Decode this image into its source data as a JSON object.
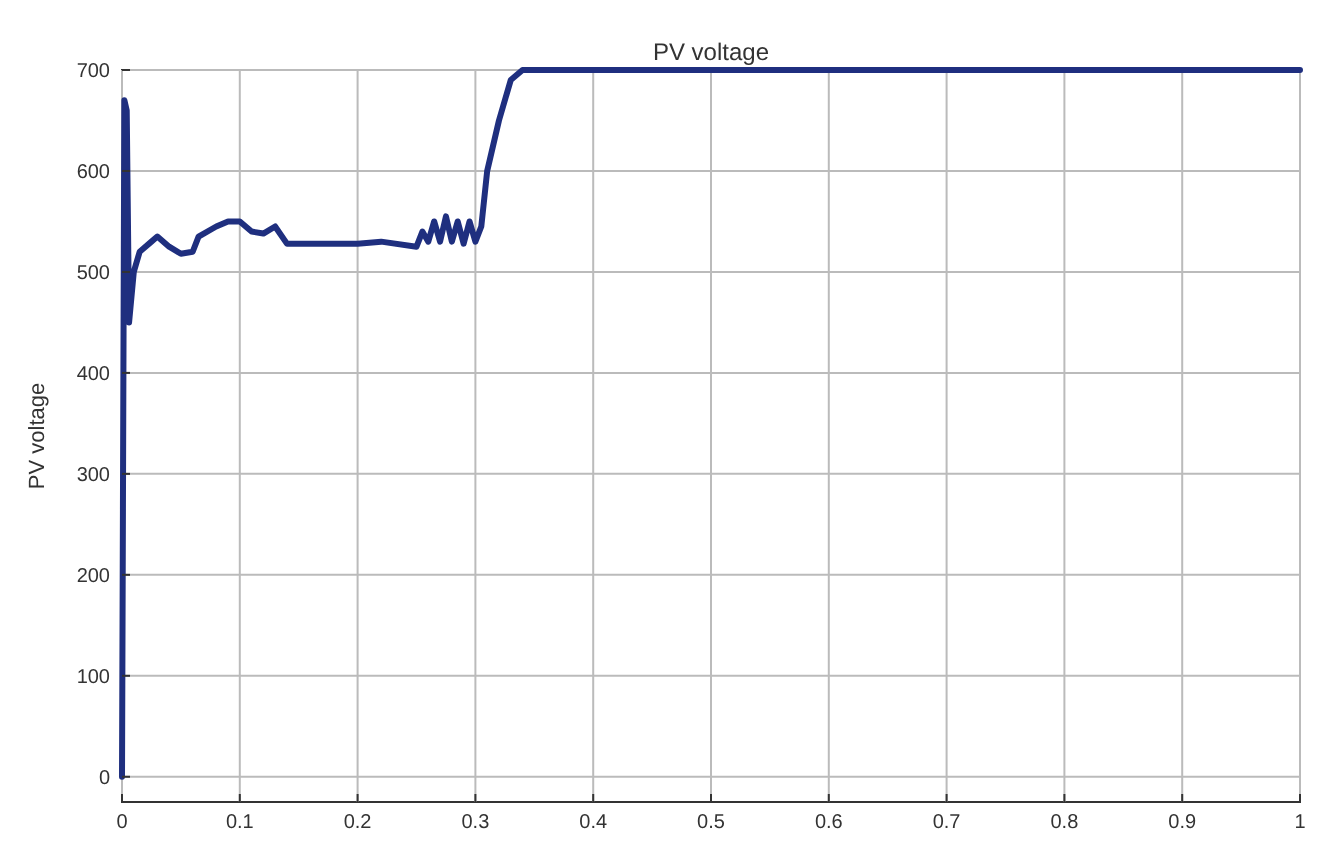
{
  "chart_data": {
    "type": "line",
    "title": "PV voltage",
    "ylabel": "PV voltage",
    "x": [
      0,
      0.002,
      0.004,
      0.006,
      0.01,
      0.015,
      0.025,
      0.03,
      0.04,
      0.05,
      0.06,
      0.065,
      0.08,
      0.09,
      0.1,
      0.11,
      0.12,
      0.13,
      0.14,
      0.2,
      0.22,
      0.25,
      0.255,
      0.26,
      0.265,
      0.27,
      0.275,
      0.28,
      0.285,
      0.29,
      0.295,
      0.3,
      0.305,
      0.31,
      0.32,
      0.33,
      0.34,
      1
    ],
    "series": [
      {
        "color": "#1f2f7f",
        "values": [
          0,
          670,
          660,
          450,
          500,
          520,
          530,
          535,
          525,
          518,
          520,
          535,
          545,
          550,
          550,
          540,
          538,
          545,
          528,
          528,
          530,
          525,
          540,
          530,
          550,
          530,
          555,
          530,
          550,
          528,
          550,
          530,
          545,
          600,
          650,
          690,
          700,
          700
        ]
      }
    ],
    "xlim": [
      0,
      1
    ],
    "xticks": [
      0,
      0.1,
      0.2,
      0.3,
      0.4,
      0.5,
      0.6,
      0.7,
      0.8,
      0.9,
      1
    ],
    "ylim": [
      -25,
      700
    ],
    "yticks": [
      0,
      100,
      200,
      300,
      400,
      500,
      600,
      700
    ],
    "grid": true
  }
}
